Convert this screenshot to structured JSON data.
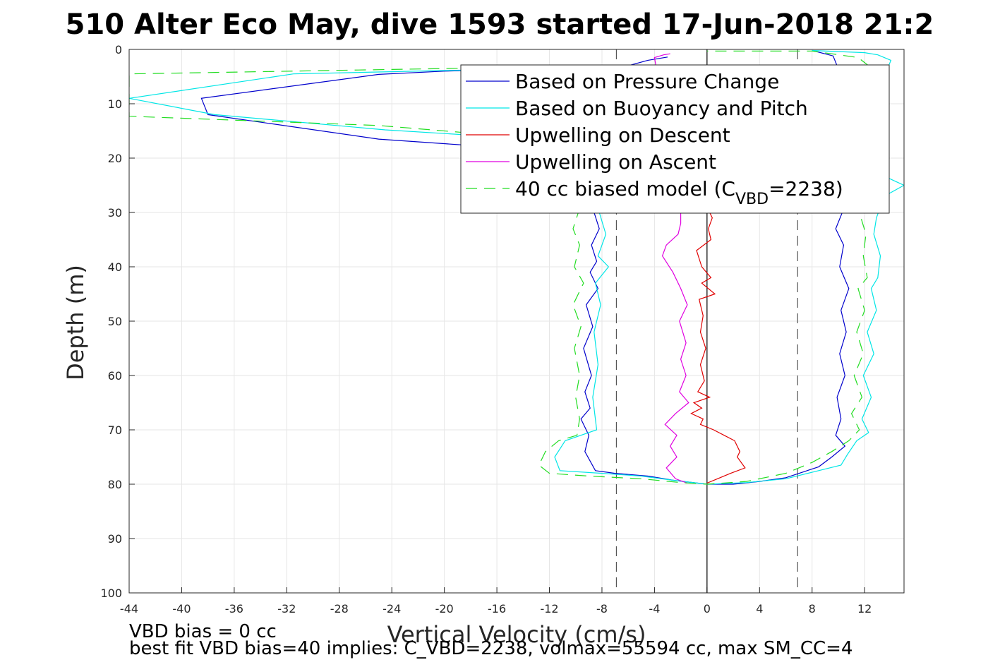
{
  "chart_data": {
    "type": "line",
    "title": "510 Alter Eco May, dive 1593 started 17-Jun-2018 21:2",
    "xlabel": "Vertical Velocity (cm/s)",
    "ylabel": "Depth (m)",
    "xlim": [
      -44,
      15
    ],
    "ylim": [
      0,
      100
    ],
    "y_reversed": true,
    "grid": true,
    "legend_position": "top-right",
    "xticks": [
      -44,
      -40,
      -36,
      -32,
      -28,
      -24,
      -20,
      -16,
      -12,
      -8,
      -4,
      0,
      4,
      8,
      12
    ],
    "yticks": [
      0,
      10,
      20,
      30,
      40,
      50,
      60,
      70,
      80,
      90,
      100
    ],
    "vertical_reference_lines": [
      {
        "x": -6.9,
        "style": "dashed"
      },
      {
        "x": 0,
        "style": "solid"
      },
      {
        "x": 6.9,
        "style": "dashed"
      }
    ],
    "legend": [
      {
        "label": "Based on Pressure Change",
        "color": "#0000cc",
        "dash": "solid"
      },
      {
        "label": "Based on Buoyancy and Pitch",
        "color": "#00e6e6",
        "dash": "solid"
      },
      {
        "label": "Upwelling on Descent",
        "color": "#e00000",
        "dash": "solid"
      },
      {
        "label": "Upwelling on Ascent",
        "color": "#e000e0",
        "dash": "solid"
      },
      {
        "label": "40 cc biased model (C",
        "sub": "VBD",
        "suffix": "=2238)",
        "color": "#22dd22",
        "dash": "dashed"
      }
    ],
    "series": [
      {
        "name": "Based on Pressure Change",
        "color": "#0000cc",
        "dash": "solid",
        "points": [
          [
            -3,
            1.4
          ],
          [
            -4.5,
            2
          ],
          [
            -6,
            3
          ],
          [
            -20,
            4
          ],
          [
            -25,
            4.6
          ],
          [
            -38.5,
            9
          ],
          [
            -38,
            12
          ],
          [
            -25,
            16.5
          ],
          [
            -18.5,
            17.6
          ],
          [
            -14,
            18
          ],
          [
            -12,
            19
          ],
          [
            -9.5,
            25
          ],
          [
            -8.6,
            30
          ],
          [
            -8.2,
            33
          ],
          [
            -8.8,
            36
          ],
          [
            -8.4,
            39
          ],
          [
            -8.9,
            41
          ],
          [
            -8.3,
            44
          ],
          [
            -9.2,
            47
          ],
          [
            -8.7,
            51
          ],
          [
            -9.4,
            55
          ],
          [
            -8.8,
            60
          ],
          [
            -9.3,
            63
          ],
          [
            -8.9,
            66
          ],
          [
            -9.6,
            68
          ],
          [
            -9,
            71
          ],
          [
            -9.3,
            74
          ],
          [
            -8.5,
            77.5
          ],
          [
            -7,
            78
          ],
          [
            -4.5,
            78.5
          ],
          [
            -2.5,
            79.3
          ],
          [
            0,
            80
          ],
          [
            2,
            80
          ],
          [
            4,
            79.5
          ],
          [
            6,
            78.8
          ],
          [
            8.5,
            76.8
          ],
          [
            9.5,
            75
          ],
          [
            10.5,
            73
          ],
          [
            9.8,
            71
          ],
          [
            10.2,
            68
          ],
          [
            9.9,
            64
          ],
          [
            10.5,
            60
          ],
          [
            10.1,
            56
          ],
          [
            10.6,
            52
          ],
          [
            10.2,
            48
          ],
          [
            10.8,
            44
          ],
          [
            10.1,
            40
          ],
          [
            10.4,
            36
          ],
          [
            9.8,
            33
          ],
          [
            10.3,
            30
          ],
          [
            10.5,
            26
          ],
          [
            10.7,
            22
          ],
          [
            10.1,
            12
          ],
          [
            9.9,
            3
          ],
          [
            9.6,
            1.2
          ],
          [
            8,
            0.2
          ]
        ]
      },
      {
        "name": "Based on Buoyancy and Pitch",
        "color": "#00e6e6",
        "dash": "solid",
        "points": [
          [
            -13,
            3.5
          ],
          [
            -31.5,
            4.5
          ],
          [
            -44,
            9
          ],
          [
            -37.5,
            12
          ],
          [
            -24.5,
            14.8
          ],
          [
            -16.5,
            16
          ],
          [
            -11,
            18
          ],
          [
            -8.8,
            22
          ],
          [
            -8.2,
            30
          ],
          [
            -7.7,
            34
          ],
          [
            -8.3,
            38
          ],
          [
            -7.5,
            40
          ],
          [
            -8.5,
            43
          ],
          [
            -8.1,
            47
          ],
          [
            -8.6,
            52
          ],
          [
            -8.3,
            58
          ],
          [
            -8.7,
            64
          ],
          [
            -8.4,
            70
          ],
          [
            -10.8,
            72
          ],
          [
            -11.6,
            75
          ],
          [
            -11.2,
            77.5
          ],
          [
            -8,
            78
          ],
          [
            -5,
            78.5
          ],
          [
            -2.5,
            79.3
          ],
          [
            0,
            80
          ],
          [
            3,
            79.7
          ],
          [
            6,
            79
          ],
          [
            8.5,
            77.5
          ],
          [
            10.2,
            76.5
          ],
          [
            10.7,
            74.5
          ],
          [
            11.4,
            72
          ],
          [
            12.3,
            70.5
          ],
          [
            11.8,
            68
          ],
          [
            12.5,
            64
          ],
          [
            11.9,
            60
          ],
          [
            12.7,
            56
          ],
          [
            12.2,
            52
          ],
          [
            12.9,
            48
          ],
          [
            12.5,
            44
          ],
          [
            13,
            42
          ],
          [
            13.2,
            38
          ],
          [
            12.7,
            34
          ],
          [
            12.9,
            31
          ],
          [
            13.5,
            27
          ],
          [
            15,
            25
          ],
          [
            13.2,
            23
          ],
          [
            12.9,
            18
          ],
          [
            13.2,
            10
          ],
          [
            13.5,
            5
          ],
          [
            14,
            2
          ],
          [
            13,
            1
          ],
          [
            12,
            0.6
          ],
          [
            8,
            0.2
          ]
        ]
      },
      {
        "name": "Upwelling on Descent",
        "color": "#e00000",
        "dash": "solid",
        "points": [
          [
            0.2,
            30
          ],
          [
            0.4,
            31
          ],
          [
            0.1,
            33
          ],
          [
            0.3,
            35
          ],
          [
            -0.8,
            37
          ],
          [
            -0.4,
            40
          ],
          [
            0.3,
            42
          ],
          [
            -0.4,
            43
          ],
          [
            0.6,
            45
          ],
          [
            -0.6,
            46
          ],
          [
            -0.3,
            49
          ],
          [
            -0.5,
            52
          ],
          [
            -0.1,
            55
          ],
          [
            -0.5,
            58
          ],
          [
            -0.2,
            61
          ],
          [
            -0.7,
            63
          ],
          [
            0.2,
            64
          ],
          [
            -1,
            65
          ],
          [
            -0.4,
            66
          ],
          [
            -1.2,
            67
          ],
          [
            -0.3,
            68
          ],
          [
            -0.5,
            69
          ],
          [
            0.5,
            70
          ],
          [
            1.3,
            71
          ],
          [
            2.1,
            72
          ],
          [
            2.5,
            74
          ],
          [
            2.3,
            75
          ],
          [
            2.9,
            77
          ],
          [
            1.8,
            78
          ],
          [
            0.8,
            79
          ],
          [
            0,
            79.8
          ]
        ]
      },
      {
        "name": "Upwelling on Ascent",
        "color": "#e000e0",
        "dash": "solid",
        "points": [
          [
            -1.5,
            79.8
          ],
          [
            -2.4,
            79
          ],
          [
            -3.1,
            77
          ],
          [
            -2.3,
            75
          ],
          [
            -2.8,
            73
          ],
          [
            -2.3,
            71
          ],
          [
            -3.2,
            69
          ],
          [
            -2.4,
            67
          ],
          [
            -1.4,
            65
          ],
          [
            -2.1,
            63
          ],
          [
            -1.6,
            60
          ],
          [
            -2,
            57
          ],
          [
            -1.6,
            54
          ],
          [
            -2.1,
            50
          ],
          [
            -1.5,
            47
          ],
          [
            -2,
            44
          ],
          [
            -2.6,
            41
          ],
          [
            -3.4,
            38
          ],
          [
            -3.1,
            36
          ],
          [
            -2.2,
            34
          ],
          [
            -2,
            32
          ],
          [
            -2,
            30
          ],
          [
            -4,
            1.5
          ],
          [
            -3.3,
            1
          ],
          [
            -2.8,
            0.8
          ]
        ]
      },
      {
        "name": "40 cc biased model (C",
        "color": "#22dd22",
        "dash": "dashed",
        "points": [
          [
            -12,
            3.2
          ],
          [
            -44,
            4.5
          ],
          [
            -44,
            12.3
          ],
          [
            -25,
            14
          ],
          [
            -15,
            16
          ],
          [
            -10.5,
            18
          ],
          [
            -9,
            22
          ],
          [
            -9.8,
            30
          ],
          [
            -10.2,
            33
          ],
          [
            -9.7,
            36
          ],
          [
            -10.1,
            40
          ],
          [
            -9.4,
            43
          ],
          [
            -10.2,
            47
          ],
          [
            -9.6,
            51
          ],
          [
            -10.1,
            55
          ],
          [
            -9.7,
            60
          ],
          [
            -10,
            64
          ],
          [
            -9.7,
            68
          ],
          [
            -9.9,
            71
          ],
          [
            -11.3,
            72
          ],
          [
            -12.3,
            74
          ],
          [
            -12.8,
            76.5
          ],
          [
            -12,
            78
          ],
          [
            -9,
            78.5
          ],
          [
            -5,
            79
          ],
          [
            -2,
            79.7
          ],
          [
            0,
            80
          ],
          [
            3,
            79.5
          ],
          [
            6,
            78
          ],
          [
            8,
            76
          ],
          [
            9.5,
            74
          ],
          [
            10.8,
            72
          ],
          [
            11.6,
            70
          ],
          [
            11,
            67
          ],
          [
            11.8,
            64
          ],
          [
            11.2,
            60
          ],
          [
            11.9,
            56
          ],
          [
            11.4,
            52
          ],
          [
            12,
            48
          ],
          [
            11.5,
            44
          ],
          [
            12.2,
            42
          ],
          [
            11.9,
            38
          ],
          [
            12.1,
            34
          ],
          [
            11.6,
            30
          ],
          [
            11.2,
            22
          ],
          [
            11.5,
            12
          ],
          [
            12,
            5
          ],
          [
            12.3,
            3
          ],
          [
            11.5,
            1.5
          ],
          [
            8,
            0.3
          ],
          [
            0,
            0.3
          ]
        ]
      }
    ]
  },
  "footer": {
    "line1": "VBD bias = 0 cc",
    "line2": "best fit VBD bias=40 implies: C_VBD=2238, volmax=55594 cc, max SM_CC=4"
  }
}
